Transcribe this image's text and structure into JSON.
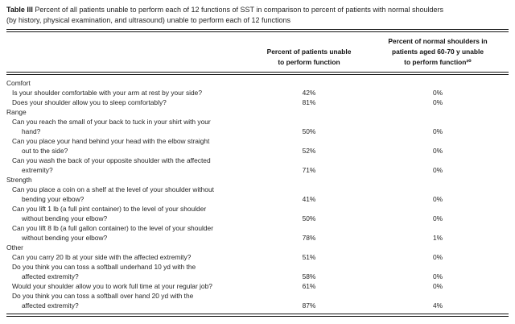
{
  "caption": {
    "label": "Table III",
    "text": "Percent of all patients unable to perform each of 12 functions of SST in comparison to percent of patients with normal shoulders\n(by history, physical examination, and ultrasound) unable to perform each of 12 functions"
  },
  "columns": {
    "col1": "Percent of patients unable\nto perform function",
    "col2": "Percent of normal shoulders in\npatients aged 60-70 y unable\nto perform function²⁰"
  },
  "rows": [
    {
      "type": "category",
      "label": "Comfort"
    },
    {
      "type": "question",
      "text": "Is your shoulder comfortable with your arm at rest by your side?",
      "v1": "42%",
      "v2": "0%"
    },
    {
      "type": "question",
      "text": "Does your shoulder allow you to sleep comfortably?",
      "v1": "81%",
      "v2": "0%"
    },
    {
      "type": "category",
      "label": "Range"
    },
    {
      "type": "question",
      "text": "Can you reach the small of your back to tuck in your shirt with your\nhand?",
      "v1": "50%",
      "v2": "0%"
    },
    {
      "type": "question",
      "text": "Can you place your hand behind your head with the elbow straight\nout to the side?",
      "v1": "52%",
      "v2": "0%"
    },
    {
      "type": "question",
      "text": "Can you wash the back of your opposite shoulder with the affected\nextremity?",
      "v1": "71%",
      "v2": "0%"
    },
    {
      "type": "category",
      "label": "Strength"
    },
    {
      "type": "question",
      "text": "Can you place a coin on a shelf at the level of your shoulder without\nbending your elbow?",
      "v1": "41%",
      "v2": "0%"
    },
    {
      "type": "question",
      "text": "Can you lift 1 lb (a full pint container) to the level of your shoulder\nwithout bending your elbow?",
      "v1": "50%",
      "v2": "0%"
    },
    {
      "type": "question",
      "text": "Can you lift 8 lb (a full gallon container) to the level of your shoulder\nwithout bending your elbow?",
      "v1": "78%",
      "v2": "1%"
    },
    {
      "type": "category",
      "label": "Other"
    },
    {
      "type": "question",
      "text": "Can you carry 20 lb at your side with the affected extremity?",
      "v1": "51%",
      "v2": "0%"
    },
    {
      "type": "question",
      "text": "Do you think you can toss a softball underhand 10 yd with the\naffected extremity?",
      "v1": "58%",
      "v2": "0%"
    },
    {
      "type": "question",
      "text": "Would your shoulder allow you to work full time at your regular job?",
      "v1": "61%",
      "v2": "0%"
    },
    {
      "type": "question",
      "text": "Do you think you can toss a softball over hand 20 yd with the\naffected extremity?",
      "v1": "87%",
      "v2": "4%"
    }
  ]
}
